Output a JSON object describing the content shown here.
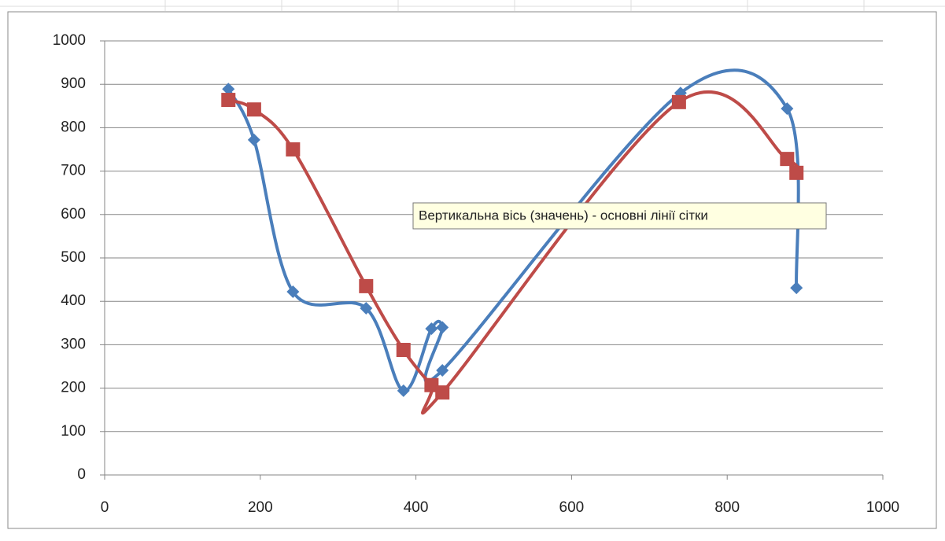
{
  "chart_data": {
    "type": "scatter",
    "smooth": true,
    "grid": true,
    "annotation": "Вертикальна вісь (значень)  -  основні лінії сітки",
    "xlim": [
      0,
      1000
    ],
    "xticks": [
      0,
      200,
      400,
      600,
      800,
      1000
    ],
    "ylim": [
      0,
      1000
    ],
    "yticks": [
      0,
      100,
      200,
      300,
      400,
      500,
      600,
      700,
      800,
      900,
      1000
    ],
    "series": [
      {
        "color": "#4a7ebb",
        "marker": "diamond",
        "x": [
          159,
          192,
          242,
          336,
          384,
          420,
          434,
          434,
          740,
          877,
          889
        ],
        "values": [
          889,
          772,
          422,
          384,
          194,
          337,
          340,
          241,
          880,
          844,
          431
        ]
      },
      {
        "color": "#be4b48",
        "marker": "square",
        "x": [
          159,
          192,
          242,
          336,
          384,
          420,
          434,
          738,
          877,
          889
        ],
        "values": [
          864,
          842,
          750,
          435,
          288,
          207,
          190,
          859,
          728,
          696
        ]
      }
    ]
  }
}
